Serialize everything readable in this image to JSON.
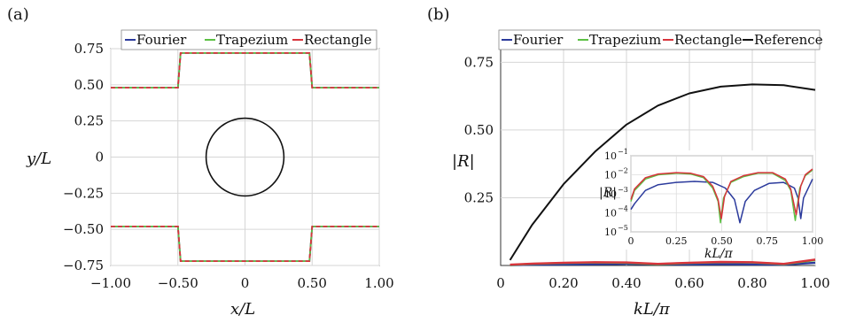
{
  "chart_data": [
    {
      "panel_label": "(a)",
      "type": "line",
      "xlabel": "x/L",
      "ylabel": "y/L",
      "xlim": [
        -1.0,
        1.0
      ],
      "ylim": [
        -0.75,
        0.75
      ],
      "xticks": [
        "−1.00",
        "−0.50",
        "0",
        "0.50",
        "1.00"
      ],
      "yticks": [
        "0.75",
        "0.50",
        "0.25",
        "0",
        "−0.25",
        "−0.50",
        "−0.75"
      ],
      "grid": true,
      "legend_position": "top",
      "series": [
        {
          "name": "Fourier",
          "color": "#2b3a9c",
          "upper": {
            "x": [
              -1.0,
              -0.5,
              -0.48,
              0.48,
              0.5,
              1.0
            ],
            "y": [
              0.48,
              0.48,
              0.72,
              0.72,
              0.48,
              0.48
            ]
          },
          "lower": {
            "x": [
              -1.0,
              -0.5,
              -0.48,
              0.48,
              0.5,
              1.0
            ],
            "y": [
              -0.48,
              -0.48,
              -0.72,
              -0.72,
              -0.48,
              -0.48
            ]
          }
        },
        {
          "name": "Trapezium",
          "color": "#5cc043",
          "upper": {
            "x": [
              -1.0,
              -0.5,
              -0.48,
              0.48,
              0.5,
              1.0
            ],
            "y": [
              0.48,
              0.48,
              0.72,
              0.72,
              0.48,
              0.48
            ]
          },
          "lower": {
            "x": [
              -1.0,
              -0.5,
              -0.48,
              0.48,
              0.5,
              1.0
            ],
            "y": [
              -0.48,
              -0.48,
              -0.72,
              -0.72,
              -0.48,
              -0.48
            ]
          }
        },
        {
          "name": "Rectangle",
          "color": "#d8343c",
          "upper": {
            "x": [
              -1.0,
              -0.5,
              -0.48,
              0.48,
              0.5,
              1.0
            ],
            "y": [
              0.48,
              0.48,
              0.72,
              0.72,
              0.48,
              0.48
            ]
          },
          "lower": {
            "x": [
              -1.0,
              -0.5,
              -0.48,
              0.48,
              0.5,
              1.0
            ],
            "y": [
              -0.48,
              -0.48,
              -0.72,
              -0.72,
              -0.48,
              -0.48
            ]
          }
        }
      ],
      "circle": {
        "center": [
          0,
          0
        ],
        "radius": 0.29,
        "color": "#111111"
      }
    },
    {
      "panel_label": "(b)",
      "type": "line",
      "xlabel": "kL/π",
      "ylabel": "|R|",
      "xlim": [
        0,
        1.0
      ],
      "ylim": [
        0,
        0.8
      ],
      "xticks": [
        "0",
        "0.20",
        "0.40",
        "0.60",
        "0.80",
        "1.00"
      ],
      "yticks": [
        "0.75",
        "0.50",
        "0.25"
      ],
      "grid": true,
      "legend_position": "top",
      "series": [
        {
          "name": "Fourier",
          "color": "#2b3a9c",
          "x": [
            0.03,
            0.1,
            0.2,
            0.3,
            0.4,
            0.5,
            0.6,
            0.7,
            0.8,
            0.9,
            1.0
          ],
          "y": [
            0.001,
            0.003,
            0.004,
            0.005,
            0.006,
            0.005,
            0.004,
            0.005,
            0.004,
            0.003,
            0.01
          ]
        },
        {
          "name": "Trapezium",
          "color": "#5cc043",
          "x": [
            0.03,
            0.1,
            0.2,
            0.3,
            0.4,
            0.5,
            0.6,
            0.7,
            0.8,
            0.9,
            1.0
          ],
          "y": [
            0.002,
            0.006,
            0.009,
            0.011,
            0.01,
            0.005,
            0.009,
            0.012,
            0.011,
            0.005,
            0.02
          ]
        },
        {
          "name": "Rectangle",
          "color": "#d8343c",
          "x": [
            0.03,
            0.1,
            0.2,
            0.3,
            0.4,
            0.5,
            0.6,
            0.7,
            0.8,
            0.9,
            1.0
          ],
          "y": [
            0.003,
            0.007,
            0.01,
            0.012,
            0.011,
            0.006,
            0.01,
            0.013,
            0.012,
            0.006,
            0.022
          ]
        },
        {
          "name": "Reference",
          "color": "#111111",
          "x": [
            0.03,
            0.1,
            0.2,
            0.3,
            0.4,
            0.5,
            0.6,
            0.7,
            0.8,
            0.9,
            1.0
          ],
          "y": [
            0.02,
            0.15,
            0.3,
            0.42,
            0.52,
            0.59,
            0.635,
            0.66,
            0.668,
            0.665,
            0.648
          ]
        }
      ],
      "inset": {
        "type": "line",
        "xlabel": "kL/π",
        "ylabel": "|R|",
        "yscale": "log",
        "xlim": [
          0,
          1.0
        ],
        "ylim": [
          1e-05,
          0.1
        ],
        "xticks": [
          "0",
          "0.25",
          "0.50",
          "0.75",
          "1.00"
        ],
        "yticks": [
          "10",
          "10",
          "10",
          "10",
          "10"
        ],
        "ytick_exponents": [
          "−1",
          "−2",
          "−3",
          "−4",
          "−5"
        ],
        "series": [
          {
            "name": "Fourier",
            "color": "#2b3a9c",
            "x": [
              0.0,
              0.02,
              0.08,
              0.15,
              0.25,
              0.35,
              0.45,
              0.52,
              0.57,
              0.6,
              0.63,
              0.68,
              0.76,
              0.84,
              0.9,
              0.92,
              0.935,
              0.95,
              1.0
            ],
            "y": [
              0.00015,
              0.0003,
              0.0015,
              0.003,
              0.004,
              0.0045,
              0.004,
              0.002,
              0.0005,
              3e-05,
              0.0004,
              0.0015,
              0.0035,
              0.004,
              0.002,
              0.0006,
              5e-05,
              0.0006,
              0.006
            ]
          },
          {
            "name": "Trapezium",
            "color": "#5cc043",
            "x": [
              0.0,
              0.02,
              0.08,
              0.15,
              0.25,
              0.33,
              0.4,
              0.45,
              0.48,
              0.493,
              0.51,
              0.55,
              0.62,
              0.7,
              0.78,
              0.85,
              0.88,
              0.905,
              0.93,
              0.96,
              1.0
            ],
            "y": [
              0.0004,
              0.0015,
              0.006,
              0.01,
              0.012,
              0.011,
              0.007,
              0.002,
              0.0004,
              3e-05,
              0.0006,
              0.004,
              0.008,
              0.012,
              0.012,
              0.005,
              0.0015,
              4e-05,
              0.002,
              0.009,
              0.018
            ]
          },
          {
            "name": "Rectangle",
            "color": "#d8343c",
            "x": [
              0.0,
              0.02,
              0.08,
              0.15,
              0.25,
              0.33,
              0.4,
              0.45,
              0.48,
              0.498,
              0.515,
              0.55,
              0.62,
              0.7,
              0.78,
              0.85,
              0.88,
              0.91,
              0.935,
              0.96,
              1.0
            ],
            "y": [
              0.0005,
              0.0018,
              0.007,
              0.011,
              0.013,
              0.012,
              0.008,
              0.0025,
              0.0005,
              5e-05,
              0.0007,
              0.0045,
              0.009,
              0.013,
              0.013,
              0.006,
              0.0018,
              8e-05,
              0.0025,
              0.01,
              0.02
            ]
          }
        ]
      }
    }
  ]
}
